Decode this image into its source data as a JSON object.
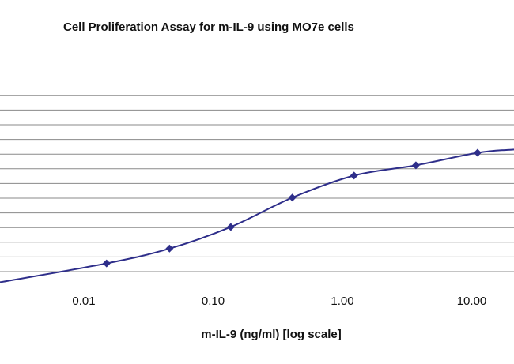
{
  "chart_data": {
    "type": "line",
    "title": "Cell Proliferation Assay for m-IL-9 using MO7e cells",
    "xlabel": "m-IL-9 (ng/ml) [log scale]",
    "ylabel": "",
    "x_scale": "log",
    "x_ticks": [
      {
        "value": 0.01,
        "label": "0.01"
      },
      {
        "value": 0.1,
        "label": "0.10"
      },
      {
        "value": 1,
        "label": "1.00"
      },
      {
        "value": 10,
        "label": "10.00"
      }
    ],
    "y_ticks": [
      0,
      1,
      2,
      3,
      4,
      5,
      6,
      7,
      8,
      9,
      10,
      11,
      12
    ],
    "grid": true,
    "series_color": "#2e2e8a",
    "series": [
      {
        "name": "",
        "x": [
          0.015,
          0.046,
          0.137,
          0.41,
          1.23,
          3.7,
          11.1
        ],
        "y": [
          0.56,
          1.57,
          3.04,
          5.04,
          6.54,
          7.24,
          8.09
        ]
      }
    ]
  }
}
